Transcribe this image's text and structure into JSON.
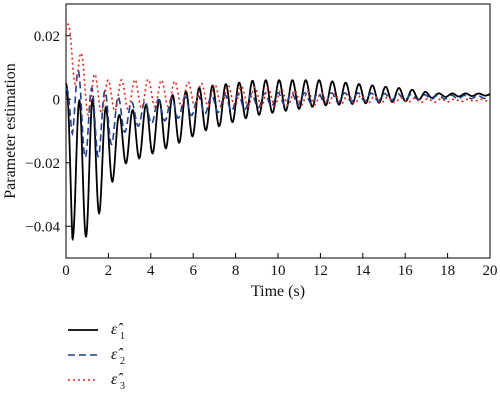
{
  "chart_data": {
    "type": "line",
    "xlabel": "Time (s)",
    "ylabel": "Parameter estimation",
    "xlim": [
      0,
      20
    ],
    "ylim": [
      -0.05,
      0.03
    ],
    "x_ticks": [
      0,
      2,
      4,
      6,
      8,
      10,
      12,
      14,
      16,
      18,
      20
    ],
    "x_tick_labels": [
      "0",
      "2",
      "4",
      "6",
      "8",
      "10",
      "12",
      "14",
      "16",
      "18",
      "20"
    ],
    "y_ticks": [
      0.02,
      0,
      -0.02,
      -0.04
    ],
    "y_tick_labels": [
      "0.02",
      "0",
      "−0.02",
      "−0.04"
    ],
    "grid": false,
    "legend_position": "bottom-left, below plot",
    "series": [
      {
        "name": "ε̂₁",
        "symbol": "ε̂",
        "subscript": "1",
        "color": "#000000",
        "style": "solid",
        "model": {
          "base": [
            [
              0,
              0
            ],
            [
              0.3,
              -0.022
            ],
            [
              1.0,
              -0.022
            ],
            [
              2.5,
              -0.013
            ],
            [
              4.5,
              -0.008
            ],
            [
              6.5,
              -0.003
            ],
            [
              9,
              0.0005
            ],
            [
              12,
              0.002
            ],
            [
              15,
              0.0015
            ],
            [
              17,
              0.0012
            ],
            [
              20,
              0.0015
            ]
          ],
          "amp": [
            [
              0,
              0.005
            ],
            [
              0.3,
              0.022
            ],
            [
              1.2,
              0.021
            ],
            [
              2.5,
              0.008
            ],
            [
              5,
              0.008
            ],
            [
              8,
              0.006
            ],
            [
              12,
              0.004
            ],
            [
              16,
              0.002
            ],
            [
              17.5,
              0.0006
            ],
            [
              20,
              0.0003
            ]
          ],
          "omega": 10.0,
          "phase": 1.57
        }
      },
      {
        "name": "ε̂₂",
        "symbol": "ε̂",
        "subscript": "2",
        "color": "#1f3f8f",
        "style": "dashed",
        "model": {
          "base": [
            [
              0,
              0
            ],
            [
              0.2,
              0.002
            ],
            [
              1.0,
              -0.008
            ],
            [
              3,
              -0.005
            ],
            [
              6,
              -0.002
            ],
            [
              10,
              0.0
            ],
            [
              14,
              0.0007
            ],
            [
              17,
              0.0007
            ],
            [
              20,
              0.0007
            ]
          ],
          "amp": [
            [
              0,
              0.003
            ],
            [
              0.3,
              0.012
            ],
            [
              1.5,
              0.011
            ],
            [
              3,
              0.004
            ],
            [
              6,
              0.003
            ],
            [
              10,
              0.002
            ],
            [
              14,
              0.0013
            ],
            [
              17,
              0.0007
            ],
            [
              20,
              0.0004
            ]
          ],
          "omega": 10.0,
          "phase": 2.0
        }
      },
      {
        "name": "ε̂₃",
        "symbol": "ε̂",
        "subscript": "3",
        "color": "#e0271e",
        "style": "dotted",
        "model": {
          "base": [
            [
              0,
              0.02
            ],
            [
              0.3,
              0.015
            ],
            [
              1.0,
              0.002
            ],
            [
              2,
              0.001
            ],
            [
              4,
              0.002
            ],
            [
              8,
              0.001
            ],
            [
              12,
              0.0002
            ],
            [
              17,
              -0.0004
            ],
            [
              20,
              -0.0003
            ]
          ],
          "amp": [
            [
              0,
              0.004
            ],
            [
              0.3,
              0.008
            ],
            [
              1,
              0.007
            ],
            [
              2,
              0.005
            ],
            [
              5,
              0.004
            ],
            [
              9,
              0.003
            ],
            [
              13,
              0.0015
            ],
            [
              16,
              0.0007
            ],
            [
              20,
              0.0002
            ]
          ],
          "omega": 10.0,
          "phase": 0.5
        }
      }
    ]
  }
}
